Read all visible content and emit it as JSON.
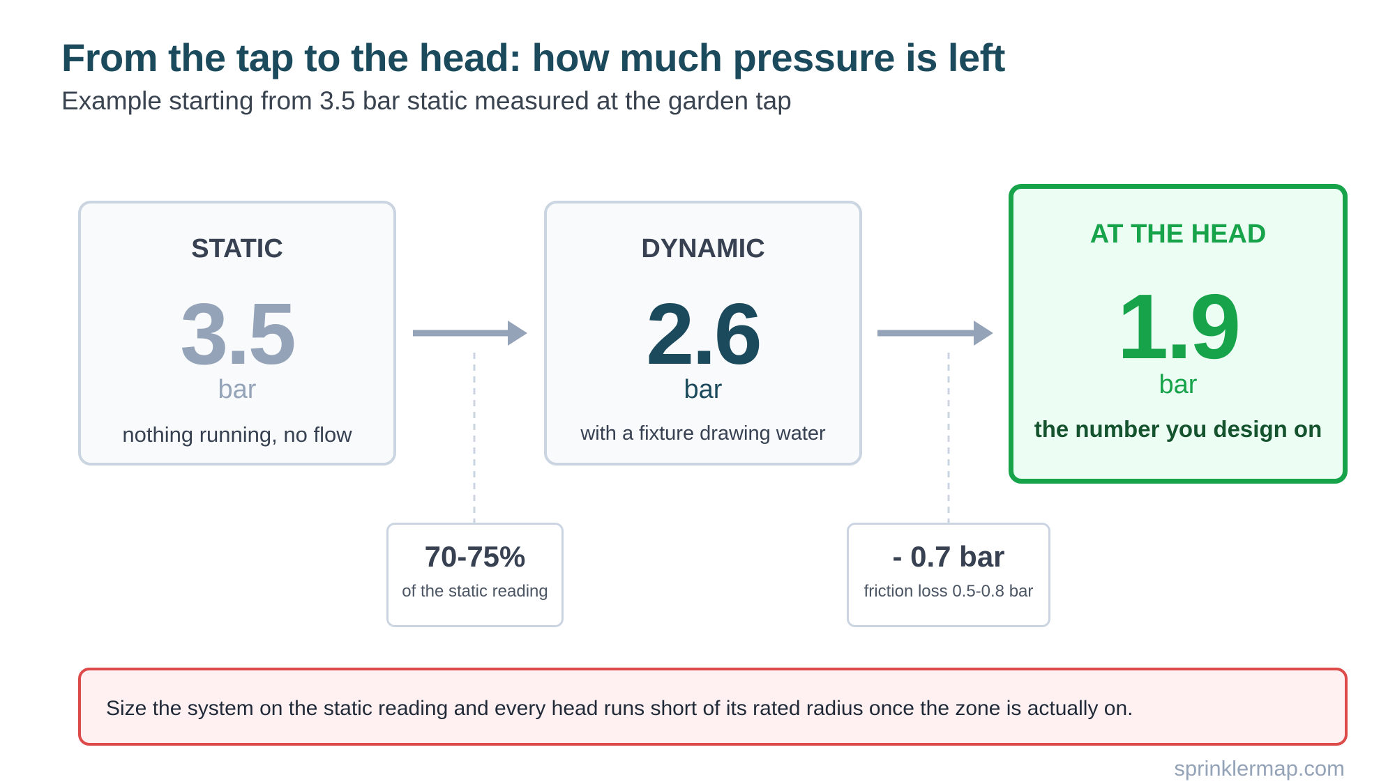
{
  "title": "From the tap to the head: how much pressure is left",
  "subtitle": "Example starting from 3.5 bar static measured at the garden tap",
  "stages": [
    {
      "label": "STATIC",
      "value": "3.5",
      "unit": "bar",
      "description": "nothing running, no flow"
    },
    {
      "label": "DYNAMIC",
      "value": "2.6",
      "unit": "bar",
      "description": "with a fixture drawing water"
    },
    {
      "label": "AT THE HEAD",
      "value": "1.9",
      "unit": "bar",
      "description": "the number you design on"
    }
  ],
  "notes": [
    {
      "value": "70-75%",
      "description": "of the static reading"
    },
    {
      "value": "- 0.7 bar",
      "description": "friction loss 0.5-0.8 bar"
    }
  ],
  "warning": "Size the system on the static reading and every head runs short of its rated radius once the zone is actually on.",
  "footer": "sprinklermap.com",
  "colors": {
    "accent": "#1b4a5c",
    "muted": "#94a3b8",
    "success": "#16a34a",
    "alert": "#dc4a4a"
  }
}
